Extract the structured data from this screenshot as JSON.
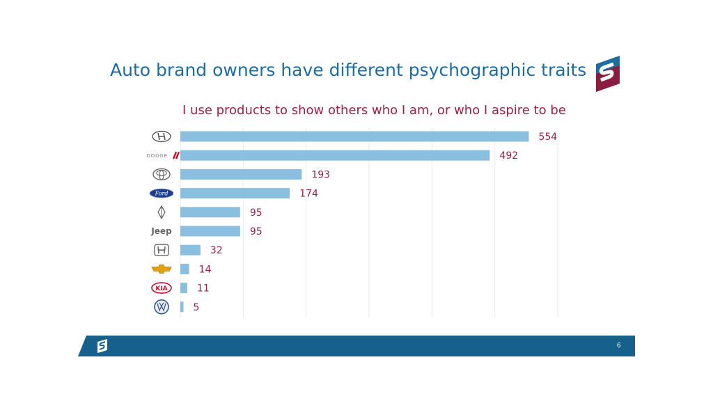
{
  "slide": {
    "title": "Auto brand owners have different psychographic traits",
    "page_number": "6"
  },
  "colors": {
    "title": "#1f6c9e",
    "subtitle": "#9b2146",
    "bar": "#8bbfdf",
    "label": "#9b2146",
    "footer": "#16608e",
    "logo_blue": "#1f6c9e",
    "logo_red": "#8b1d40"
  },
  "chart_data": {
    "type": "bar",
    "orientation": "horizontal",
    "title": "I use products to show others who I am, or who I aspire to be",
    "categories": [
      "Hyundai",
      "Dodge",
      "Toyota",
      "Ford",
      "Lincoln",
      "Jeep",
      "Honda",
      "Chevrolet",
      "Kia",
      "Volkswagen"
    ],
    "category_icons": [
      "hyundai-logo-icon",
      "dodge-logo-icon",
      "toyota-logo-icon",
      "ford-logo-icon",
      "lincoln-logo-icon",
      "jeep-logo-icon",
      "honda-logo-icon",
      "chevrolet-logo-icon",
      "kia-logo-icon",
      "volkswagen-logo-icon"
    ],
    "category_logo_text": [
      "",
      "DODGE",
      "",
      "Ford",
      "",
      "Jeep",
      "",
      "",
      "KIA",
      ""
    ],
    "values": [
      554,
      492,
      193,
      174,
      95,
      95,
      32,
      14,
      11,
      5
    ],
    "xlim": [
      0,
      600
    ],
    "grid": true,
    "legend": "none"
  }
}
